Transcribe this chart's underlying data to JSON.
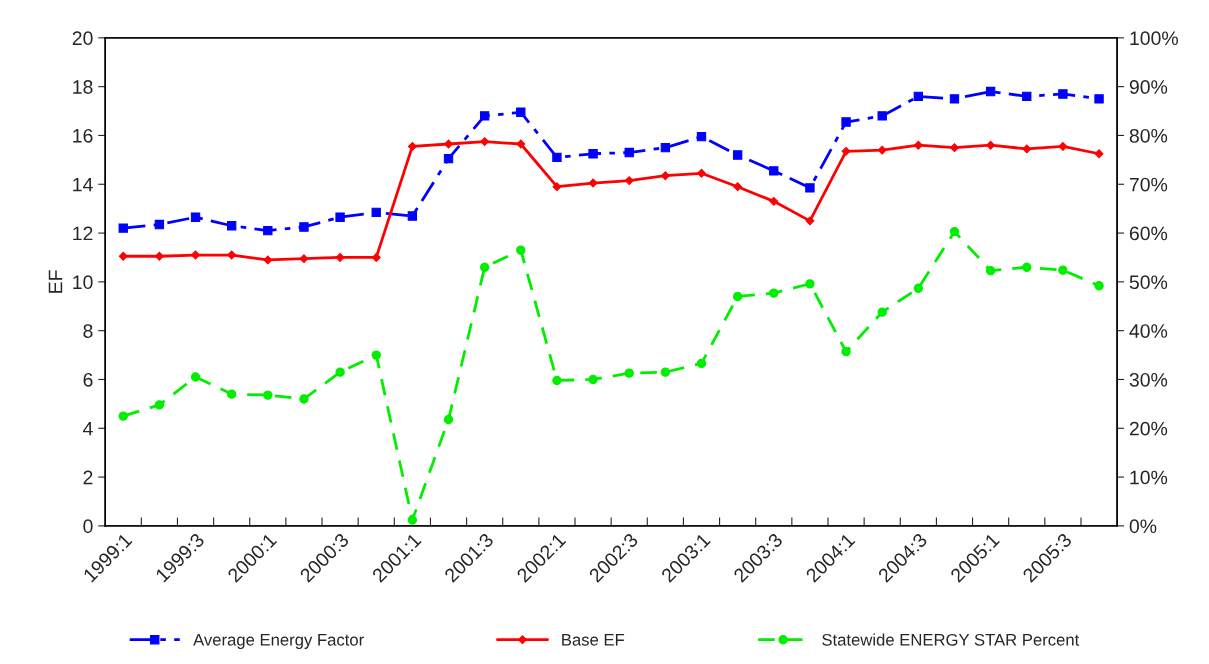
{
  "chart_data": {
    "type": "line",
    "ylabel": "EF",
    "categories": [
      "1999:1",
      null,
      "1999:3",
      null,
      "2000:1",
      null,
      "2000:3",
      null,
      "2001:1",
      null,
      "2001:3",
      null,
      "2002:1",
      null,
      "2002:3",
      null,
      "2003:1",
      null,
      "2003:3",
      null,
      "2004:1",
      null,
      "2004:3",
      null,
      "2005:1",
      null,
      "2005:3",
      null
    ],
    "series": [
      {
        "name": "Average Energy Factor",
        "color": "#0000ff",
        "marker": "square",
        "line_style": "dashdot",
        "values": [
          12.2,
          12.35,
          12.65,
          12.3,
          12.1,
          12.25,
          12.65,
          12.85,
          12.7,
          15.05,
          16.8,
          16.95,
          15.1,
          15.25,
          15.3,
          15.5,
          15.95,
          15.2,
          14.55,
          13.85,
          16.55,
          16.8,
          17.6,
          17.5,
          17.8,
          17.6,
          17.7,
          17.5
        ]
      },
      {
        "name": "Base EF",
        "color": "#ff0000",
        "marker": "diamond",
        "line_style": "solid",
        "values": [
          11.05,
          11.05,
          11.1,
          11.1,
          10.9,
          10.95,
          11.0,
          11.0,
          15.55,
          15.65,
          15.75,
          15.65,
          13.9,
          14.05,
          14.15,
          14.35,
          14.45,
          13.9,
          13.3,
          12.5,
          15.35,
          15.4,
          15.6,
          15.5,
          15.6,
          15.45,
          15.55,
          15.25
        ]
      },
      {
        "name": "Statewide ENERGY STAR Percent",
        "color": "#00ee00",
        "marker": "circle",
        "line_style": "dashed",
        "axis": "y2",
        "values": [
          22.5,
          24.8,
          30.5,
          27,
          26.8,
          26,
          31.5,
          35,
          1.2,
          21.8,
          53,
          56.5,
          29.8,
          30,
          31.3,
          31.5,
          33.3,
          47,
          47.7,
          49.6,
          35.7,
          43.8,
          48.7,
          60.3,
          52.3,
          53,
          52.4,
          49.2
        ]
      }
    ],
    "ylim": [
      0,
      20
    ],
    "yticks": [
      0,
      2,
      4,
      6,
      8,
      10,
      12,
      14,
      16,
      18,
      20
    ],
    "y2lim": [
      0,
      100
    ],
    "y2ticks": [
      {
        "value": 0,
        "label": "0%"
      },
      {
        "value": 10,
        "label": "10%"
      },
      {
        "value": 20,
        "label": "20%"
      },
      {
        "value": 30,
        "label": "30%"
      },
      {
        "value": 40,
        "label": "40%"
      },
      {
        "value": 50,
        "label": "50%"
      },
      {
        "value": 60,
        "label": "60%"
      },
      {
        "value": 70,
        "label": "70%"
      },
      {
        "value": 80,
        "label": "80%"
      },
      {
        "value": 90,
        "label": "90%"
      },
      {
        "value": 100,
        "label": "100%"
      }
    ],
    "grid": false,
    "legend": "bottom"
  }
}
